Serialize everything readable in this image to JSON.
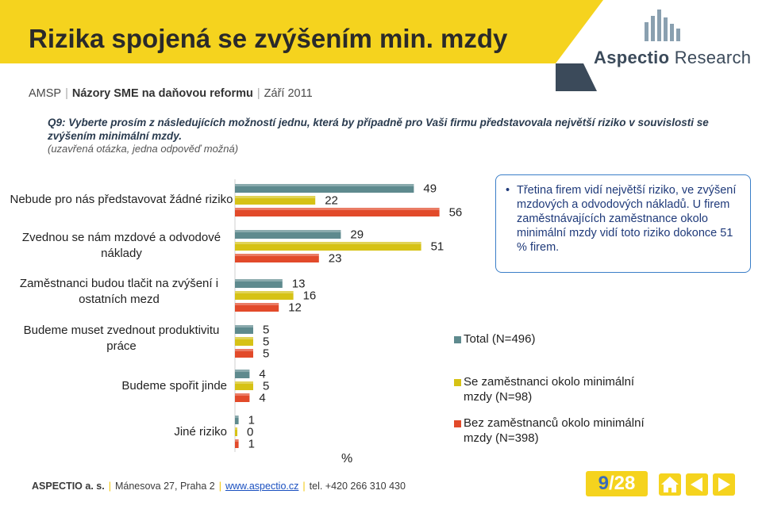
{
  "header": {
    "title": "Rizika spojená se zvýšením min. mzdy",
    "logo_text_bold": "Aspectio",
    "logo_text_rest": " Research"
  },
  "subtitle": {
    "part1": "AMSP",
    "part2": "Názory SME na daňovou reformu",
    "part3": "Září 2011"
  },
  "question": "Q9: Vyberte prosím z následujících možností jednu, která by případně pro Vaši firmu představovala největší riziko v souvislosti se zvýšením minimální mzdy.",
  "note": "(uzavřená otázka, jedna odpověď možná)",
  "callout": "Třetina firem vidí největší riziko, ve zvýšení mzdových a odvodových nákladů. U firem zaměstnávajících zaměstnance okolo minimální mzdy vidí toto riziko dokonce 51 % firem.",
  "chart_data": {
    "type": "bar",
    "orientation": "horizontal",
    "categories": [
      "Nebude pro nás představovat žádné riziko",
      "Zvednou se nám mzdové a odvodové náklady",
      "Zaměstnanci budou tlačit na zvýšení i ostatních mezd",
      "Budeme muset zvednout produktivitu práce",
      "Budeme spořit jinde",
      "Jiné riziko"
    ],
    "series": [
      {
        "name": "Total (N=496)",
        "values": [
          49,
          29,
          13,
          5,
          4,
          1
        ],
        "color": "#5e8a8e"
      },
      {
        "name": "Se zaměstnanci okolo minimální mzdy (N=98)",
        "values": [
          22,
          51,
          16,
          5,
          5,
          0
        ],
        "color": "#d6c215"
      },
      {
        "name": "Bez zaměstnanců okolo minimální mzdy (N=398)",
        "values": [
          56,
          23,
          12,
          5,
          4,
          1
        ],
        "color": "#e24a2a"
      }
    ],
    "xlabel": "%",
    "xlim": [
      0,
      60
    ],
    "legend": "right"
  },
  "legend": {
    "total": "Total (N=496)",
    "with_min": "Se zaměstnanci okolo minimální mzdy (N=98)",
    "without_min": "Bez zaměstnanců okolo minimální mzdy (N=398)"
  },
  "axis_unit": "%",
  "footer": {
    "company": "ASPECTIO a. s.",
    "address": "Mánesova 27, Praha 2",
    "web": "www.aspectio.cz",
    "phone": "tel. +420 266 310 430"
  },
  "page": {
    "current": "9",
    "total": "/28"
  },
  "colors": {
    "accent": "#f5d31e",
    "total": "#5e8a8e",
    "with_min": "#d6c215",
    "without_min": "#e24a2a"
  }
}
